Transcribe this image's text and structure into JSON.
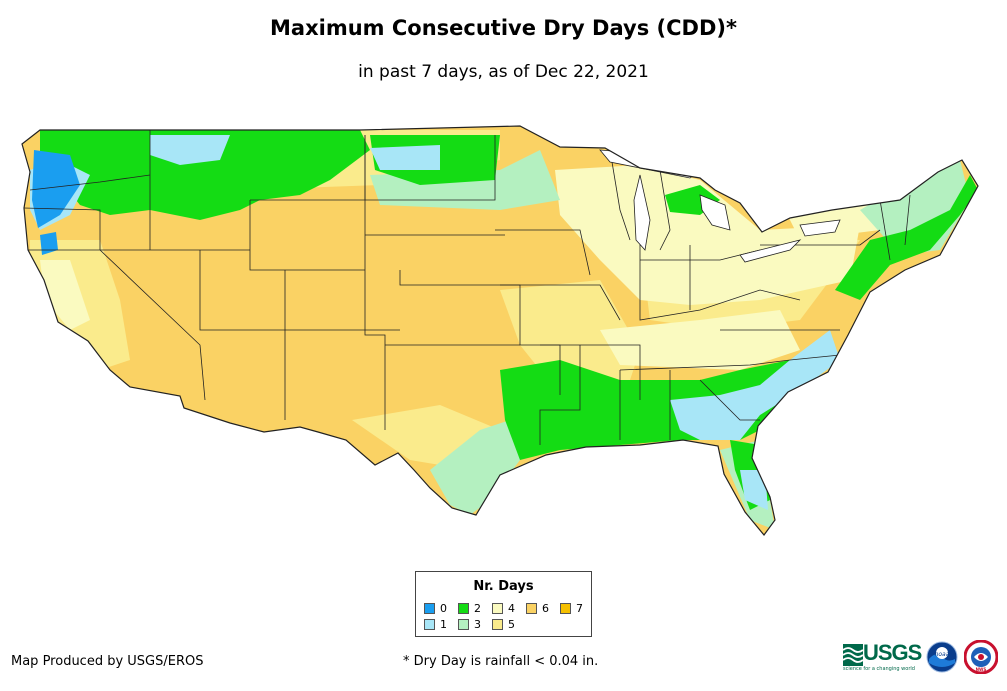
{
  "title": "Maximum Consecutive Dry Days (CDD)*",
  "subtitle": "in past 7 days, as of Dec 22, 2021",
  "legend": {
    "title": "Nr. Days",
    "items": [
      {
        "label": "0",
        "color": "#1a9ef0"
      },
      {
        "label": "1",
        "color": "#a8e6f7"
      },
      {
        "label": "2",
        "color": "#14dc14"
      },
      {
        "label": "3",
        "color": "#b4f0c0"
      },
      {
        "label": "4",
        "color": "#fafac0"
      },
      {
        "label": "5",
        "color": "#faeb8c"
      },
      {
        "label": "6",
        "color": "#fad264"
      },
      {
        "label": "7",
        "color": "#f5c000"
      }
    ]
  },
  "credit": "Map Produced by USGS/EROS",
  "footnote": "* Dry Day is rainfall < 0.04 in.",
  "logos": {
    "usgs": "USGS",
    "usgs_tagline": "science for a changing world",
    "noaa": "noaa",
    "nws": "NWS"
  }
}
